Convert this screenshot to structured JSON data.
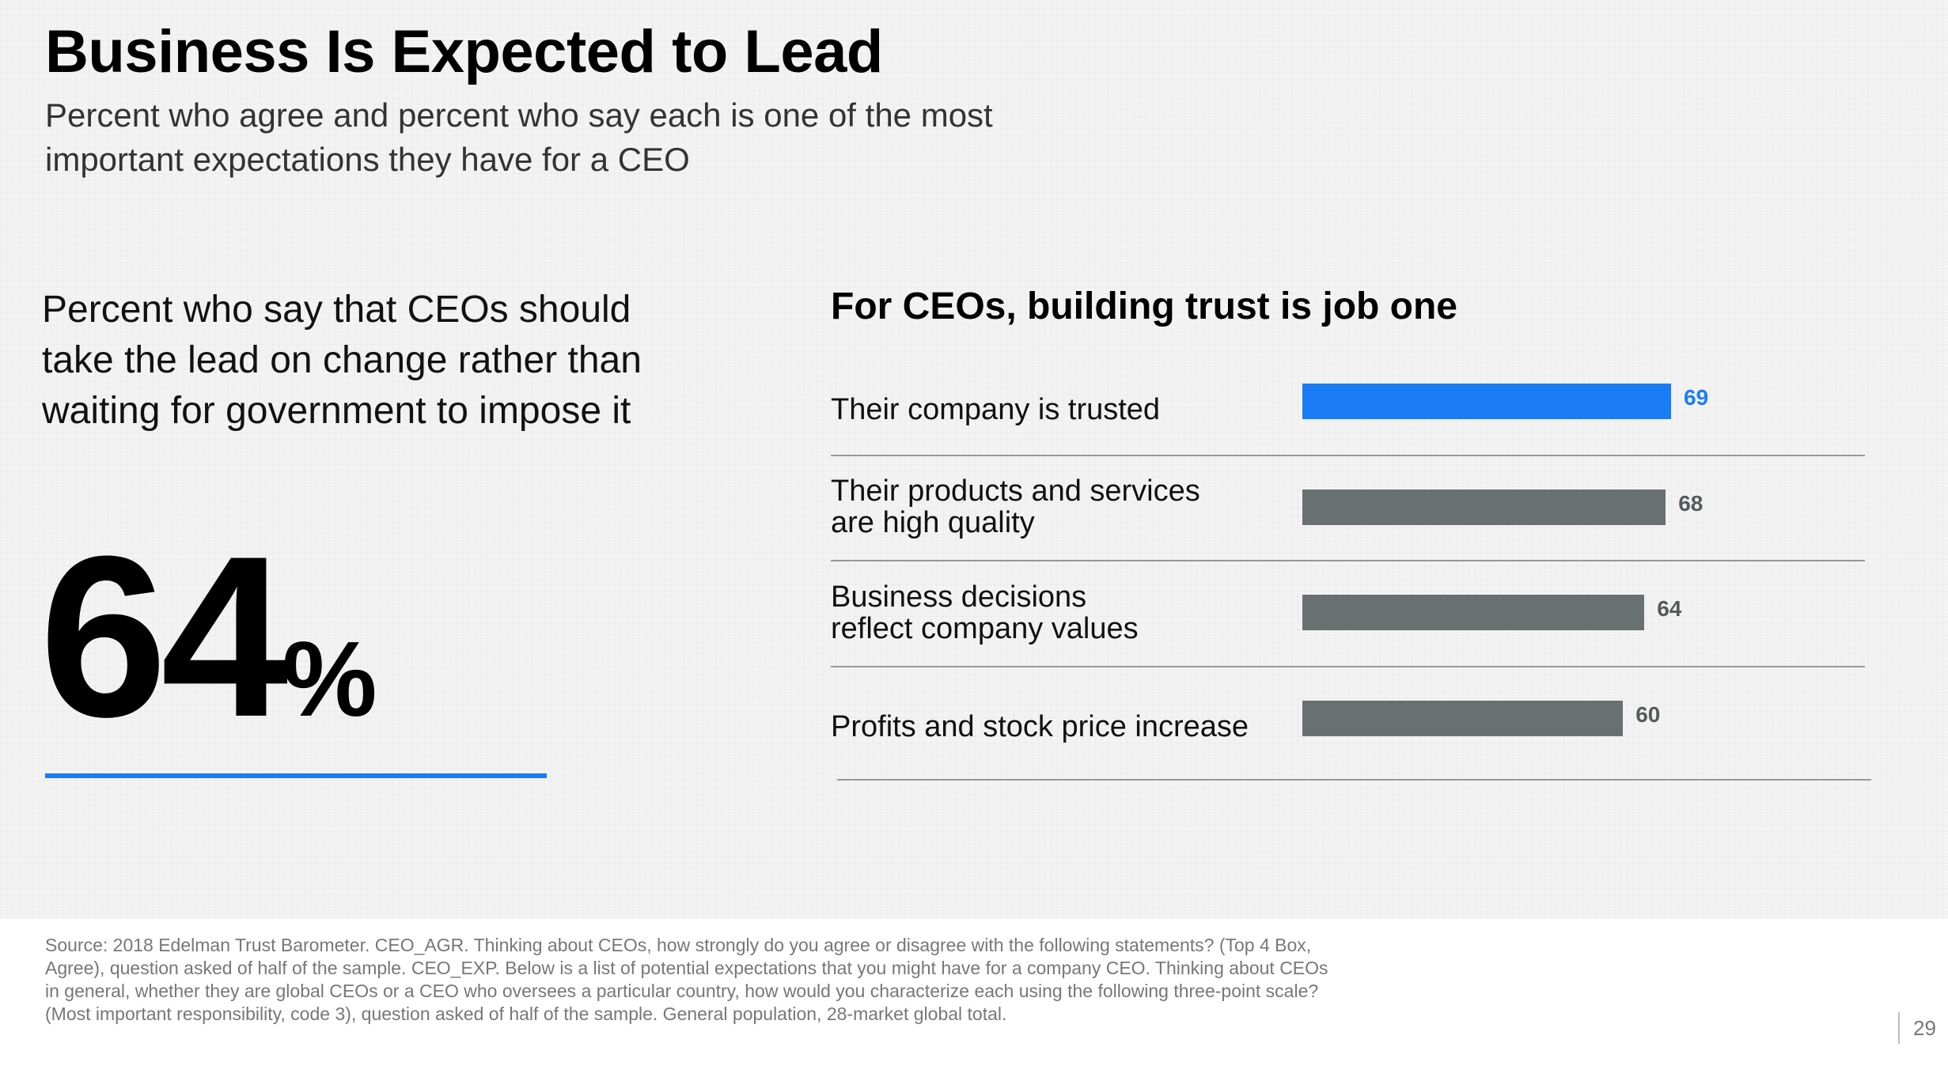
{
  "header": {
    "title": "Business Is Expected to Lead",
    "subtitle": "Percent who agree and percent who say each is one of the most important expectations they have for a CEO"
  },
  "left_panel": {
    "text": "Percent who say that CEOs should take the lead on change rather than waiting for government to impose it",
    "value": "64",
    "unit": "%",
    "accent_color": "#1a7cf5"
  },
  "chart_data": {
    "type": "bar",
    "orientation": "horizontal",
    "title": "For CEOs, building trust is job one",
    "categories": [
      "Their company is trusted",
      "Their products and services are high quality",
      "Business decisions reflect company values",
      "Profits and stock price increase"
    ],
    "category_lines": [
      [
        "Their company is trusted"
      ],
      [
        "Their products and services",
        "are high quality"
      ],
      [
        "Business decisions",
        "reflect company values"
      ],
      [
        "Profits and stock price increase"
      ]
    ],
    "values": [
      69,
      68,
      64,
      60
    ],
    "value_labels": [
      "69",
      "68",
      "64",
      "60"
    ],
    "colors": [
      "#1a7cf5",
      "#687070",
      "#687070",
      "#687070"
    ],
    "label_colors": [
      "#1a7cf5",
      "#555b5b",
      "#555b5b",
      "#555b5b"
    ],
    "xlim": [
      0,
      100
    ],
    "grid": false,
    "xlabel": "",
    "ylabel": ""
  },
  "footer": {
    "source": "Source: 2018 Edelman Trust Barometer. CEO_AGR. Thinking about CEOs, how strongly do you agree or disagree with the following statements? (Top 4 Box, Agree), question asked of half of the sample. CEO_EXP. Below is a list of potential expectations that you might have for a company CEO. Thinking about CEOs in general, whether they are global CEOs or a CEO who oversees a particular country, how would you characterize each using the following three-point scale? (Most important responsibility, code 3), question asked of half of the sample. General population, 28-market global total.",
    "page_number": "29"
  }
}
